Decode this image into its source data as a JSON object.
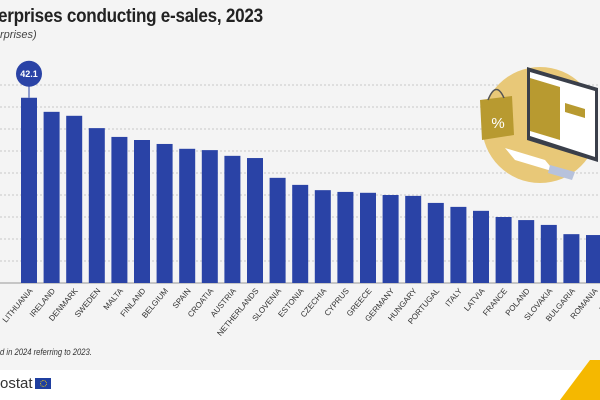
{
  "chart_data": {
    "type": "bar",
    "title": "erprises conducting e-sales, 2023",
    "subtitle": "rprises)",
    "categories": [
      "LITHUANIA",
      "IRELAND",
      "DENMARK",
      "SWEDEN",
      "MALTA",
      "FINLAND",
      "BELGIUM",
      "SPAIN",
      "CROATIA",
      "AUSTRIA",
      "NETHERLANDS",
      "SLOVENIA",
      "ESTONIA",
      "CZECHIA",
      "CYPRUS",
      "GREECE",
      "GERMANY",
      "HUNGARY",
      "PORTUGAL",
      "ITALY",
      "LATVIA",
      "FRANCE",
      "POLAND",
      "SLOVAKIA",
      "BULGARIA",
      "ROMANIA",
      "LUXEM"
    ],
    "values": [
      42.1,
      38.9,
      38.0,
      35.2,
      33.2,
      32.5,
      31.6,
      30.5,
      30.2,
      28.9,
      28.4,
      23.9,
      22.3,
      21.1,
      20.7,
      20.5,
      20.0,
      19.8,
      18.2,
      17.3,
      16.4,
      15.0,
      14.3,
      13.2,
      11.1,
      10.9,
      10.7
    ],
    "highlight_label": "42.1",
    "ylim": [
      0,
      45
    ],
    "grid": true,
    "bar_color": "#2a43a6",
    "note": "d in 2024 referring to 2023."
  },
  "footer": {
    "logo_text": "ostat"
  },
  "colors": {
    "background": "#f4f4f4",
    "illustration": "#e8c878",
    "accent": "#f5b800"
  }
}
